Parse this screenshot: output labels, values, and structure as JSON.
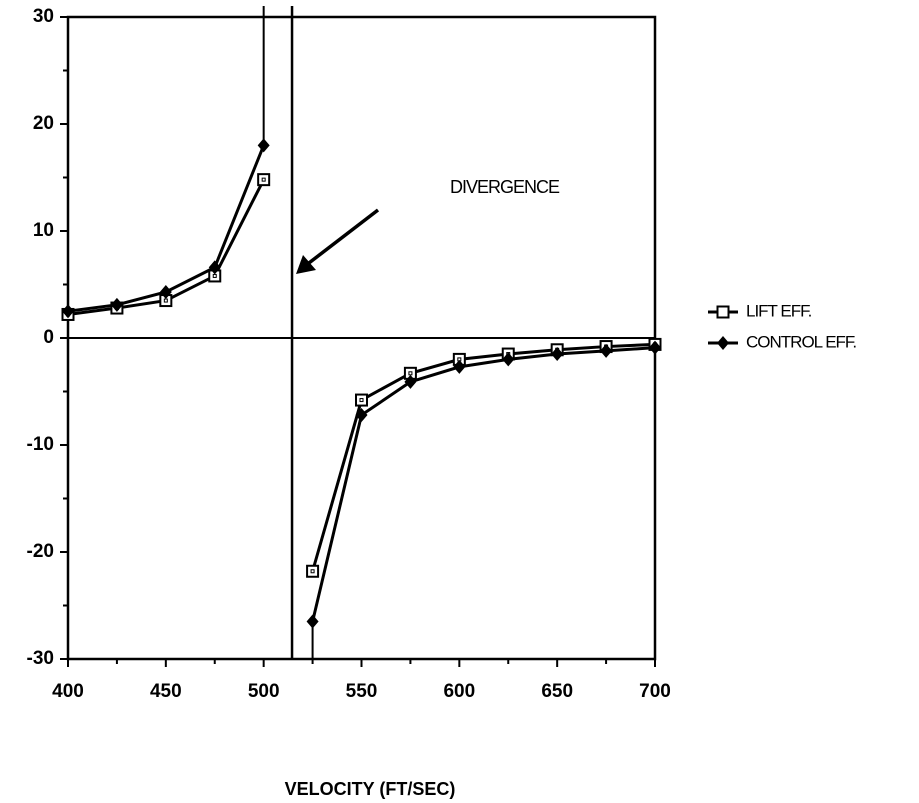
{
  "chart_data": {
    "type": "line",
    "x_label": "VELOCITY (FT/SEC)",
    "annotation": "DIVERGENCE",
    "divergence": 514.5,
    "x": [
      400,
      425,
      450,
      475,
      500,
      525,
      550,
      575,
      600,
      625,
      650,
      675,
      700
    ],
    "series": [
      {
        "name": "LIFT EFF.",
        "color": "#000000",
        "marker": "square",
        "values": [
          2.2,
          2.8,
          3.5,
          5.8,
          14.8,
          -21.8,
          -5.8,
          -3.3,
          -2.0,
          -1.5,
          -1.1,
          -0.8,
          -0.6
        ]
      },
      {
        "name": "CONTROL EFF.",
        "color": "#000000",
        "marker": "diamond",
        "values": [
          2.5,
          3.1,
          4.3,
          6.6,
          18.0,
          -26.5,
          -7.2,
          -4.1,
          -2.7,
          -2.0,
          -1.5,
          -1.2,
          -0.9
        ]
      }
    ],
    "xlim": [
      400,
      700
    ],
    "xticks": [
      400,
      450,
      500,
      550,
      600,
      650,
      700
    ],
    "xminorticks": [
      425,
      475,
      525,
      575,
      625,
      675
    ],
    "ylim": [
      -30,
      30
    ],
    "yticks": [
      -30,
      -20,
      -10,
      0,
      10,
      20,
      30
    ],
    "yminorticks": [
      -25,
      -15,
      -5,
      5,
      15,
      25
    ]
  }
}
